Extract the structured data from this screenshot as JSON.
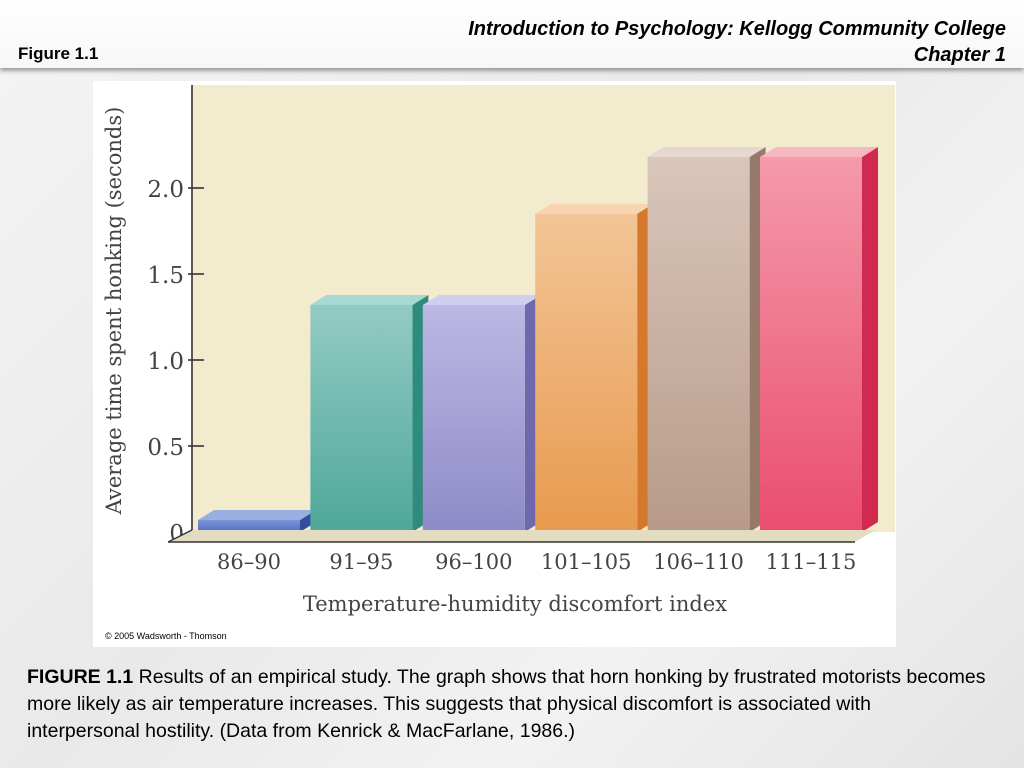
{
  "slide": {
    "figure_label": "Figure 1.1",
    "header_line1": "Introduction to Psychology: Kellogg Community College",
    "header_line2": "Chapter 1",
    "copyright": "© 2005 Wadsworth - Thomson",
    "caption_bold": "FIGURE 1.1",
    "caption_text": " Results of an empirical study. The graph shows that horn honking by frustrated motorists becomes more likely as air temperature increases. This suggests that physical discomfort is associated with interpersonal hostility. (Data from Kenrick & MacFarlane, 1986.)"
  },
  "chart_data": {
    "type": "bar",
    "title": "",
    "xlabel": "Temperature-humidity discomfort index",
    "ylabel": "Average time spent honking (seconds)",
    "categories": [
      "86–90",
      "91–95",
      "96–100",
      "101–105",
      "106–110",
      "111–115"
    ],
    "values": [
      0.07,
      1.32,
      1.32,
      1.85,
      2.18,
      2.18
    ],
    "yticks": [
      0,
      0.5,
      1.0,
      1.5,
      2.0
    ],
    "ytick_labels": [
      "0",
      "0.5",
      "1.0",
      "1.5",
      "2.0"
    ],
    "ylim": [
      0,
      2.5
    ],
    "grid": false,
    "legend": "none",
    "colors": {
      "plot_background": "#f3ebcd",
      "bar_fronts": [
        "#4f6fbf",
        "#4ea79a",
        "#8e8ac7",
        "#e89a4f",
        "#b89a88",
        "#ea4d70"
      ],
      "bar_lights": [
        "#7d95d8",
        "#93cbc3",
        "#bcb8e3",
        "#f2c596",
        "#d9c6ba",
        "#f49aa8"
      ],
      "bar_sides": [
        "#2f4f9d",
        "#2e8b7e",
        "#6e69ad",
        "#d5782c",
        "#96796a",
        "#d12a51"
      ],
      "bar_tops": [
        "#9aaee2",
        "#a7d8d1",
        "#d1cff0",
        "#f6d5b0",
        "#e6d8cf",
        "#f7b7c1"
      ]
    }
  }
}
